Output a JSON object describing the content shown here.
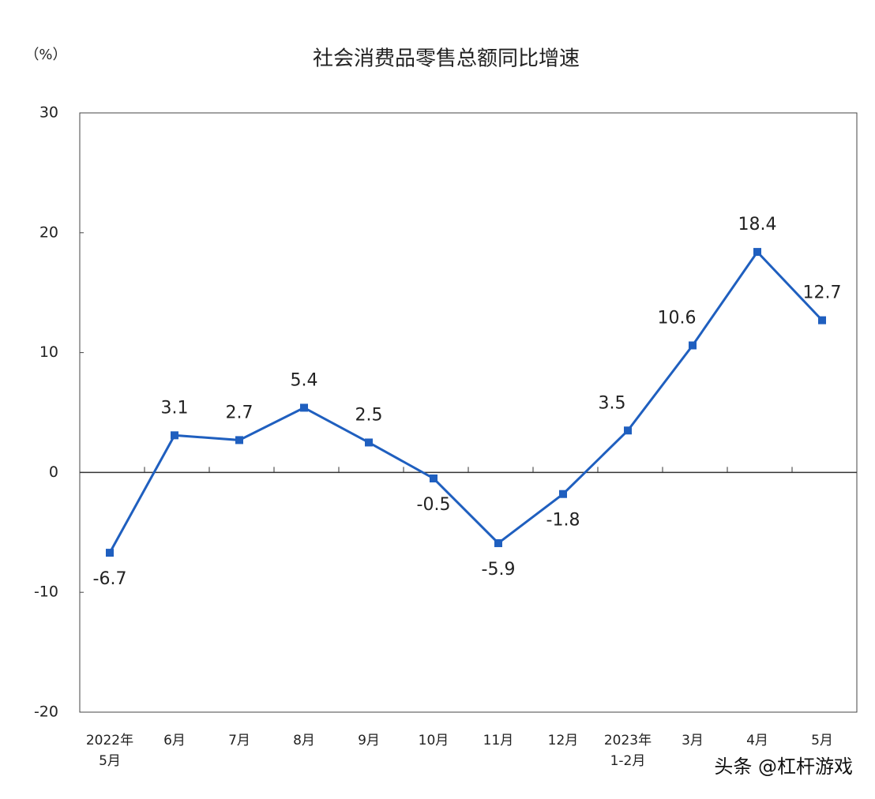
{
  "chart_data": {
    "type": "line",
    "title": "社会消费品零售总额同比增速",
    "y_label": "（%）",
    "categories": [
      "2022年\n5月",
      "6月",
      "7月",
      "8月",
      "9月",
      "10月",
      "11月",
      "12月",
      "2023年\n1-2月",
      "3月",
      "4月",
      "5月"
    ],
    "series": [
      {
        "name": "社会消费品零售总额同比增速",
        "color": "#1f5fbf",
        "values": [
          -6.7,
          3.1,
          2.7,
          5.4,
          2.5,
          -0.5,
          -5.9,
          -1.8,
          3.5,
          10.6,
          18.4,
          12.7
        ]
      }
    ],
    "ylim": [
      -20,
      30
    ],
    "yticks": [
      -20,
      -10,
      0,
      10,
      20,
      30
    ],
    "grid": false,
    "watermark": "头条 @杠杆游戏"
  }
}
